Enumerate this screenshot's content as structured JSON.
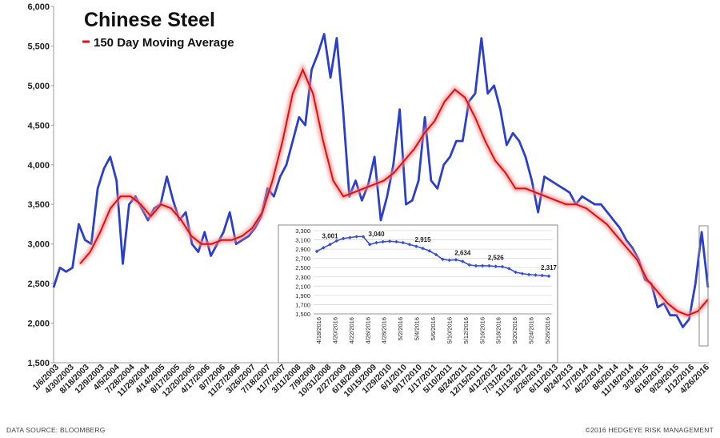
{
  "chart_data": [
    {
      "type": "line",
      "title": "Chinese Steel",
      "ylim": [
        1500,
        6000
      ],
      "yticks": [
        "1,500",
        "2,000",
        "2,500",
        "3,000",
        "3,500",
        "4,000",
        "4,500",
        "5,000",
        "5,500",
        "6,000"
      ],
      "ytick_values": [
        1500,
        2000,
        2500,
        3000,
        3500,
        4000,
        4500,
        5000,
        5500,
        6000
      ],
      "xticks": [
        "1/6/2003",
        "4/30/2003",
        "8/18/2003",
        "12/9/2003",
        "4/5/2004",
        "7/28/2004",
        "11/29/2004",
        "4/14/2005",
        "8/17/2005",
        "12/20/2005",
        "4/17/2006",
        "8/7/2006",
        "11/27/2006",
        "3/26/2007",
        "7/18/2007",
        "11/7/2007",
        "3/11/2008",
        "7/9/2008",
        "10/31/2008",
        "2/27/2009",
        "6/18/2009",
        "10/15/2009",
        "1/29/2010",
        "6/1/2010",
        "9/17/2010",
        "1/17/2011",
        "5/10/2011",
        "8/24/2011",
        "12/15/2011",
        "4/12/2012",
        "7/31/2012",
        "11/13/2012",
        "2/26/2013",
        "6/11/2013",
        "9/24/2013",
        "1/7/2014",
        "4/22/2014",
        "8/5/2014",
        "11/18/2014",
        "3/3/2015",
        "6/16/2015",
        "9/29/2015",
        "1/12/2016",
        "4/26/2016"
      ],
      "grid": false,
      "series": [
        {
          "name": "",
          "color": "#2b3fc8",
          "values": [
            2450,
            2700,
            2650,
            2700,
            3250,
            3050,
            3000,
            3700,
            3950,
            4100,
            3800,
            2750,
            3500,
            3600,
            3450,
            3300,
            3450,
            3500,
            3850,
            3550,
            3300,
            3400,
            3000,
            2900,
            3150,
            2850,
            3000,
            3150,
            3400,
            3000,
            3050,
            3100,
            3200,
            3350,
            3700,
            3600,
            3850,
            4000,
            4300,
            4600,
            4500,
            5200,
            5400,
            5650,
            5100,
            5600,
            4700,
            3600,
            3800,
            3550,
            3750,
            4100,
            3300,
            3600,
            4000,
            4700,
            3500,
            3550,
            3800,
            4600,
            3800,
            3700,
            4000,
            4100,
            4300,
            4300,
            4800,
            4900,
            5600,
            4900,
            5000,
            4700,
            4250,
            4400,
            4300,
            4100,
            3800,
            3400,
            3850,
            3800,
            3750,
            3700,
            3650,
            3500,
            3600,
            3550,
            3500,
            3500,
            3400,
            3300,
            3200,
            3050,
            2950,
            2800,
            2550,
            2500,
            2200,
            2250,
            2100,
            2100,
            1950,
            2050,
            2500,
            3150,
            2450
          ]
        },
        {
          "name": "150 Day Moving Average",
          "color": "#e01010",
          "values": [
            2750,
            2900,
            3150,
            3450,
            3600,
            3600,
            3500,
            3350,
            3500,
            3450,
            3300,
            3100,
            3000,
            3000,
            3050,
            3050,
            3100,
            3200,
            3400,
            3800,
            4300,
            4900,
            5200,
            4900,
            4300,
            3800,
            3600,
            3650,
            3700,
            3750,
            3800,
            3900,
            4050,
            4200,
            4400,
            4550,
            4800,
            4950,
            4850,
            4600,
            4300,
            4050,
            3900,
            3700,
            3700,
            3650,
            3600,
            3550,
            3500,
            3500,
            3450,
            3350,
            3250,
            3100,
            2950,
            2800,
            2550,
            2400,
            2250,
            2150,
            2100,
            2150,
            2300
          ]
        }
      ]
    },
    {
      "type": "line",
      "title": "",
      "ylim": [
        1500,
        3300
      ],
      "yticks": [
        "1,500",
        "1,700",
        "1,900",
        "2,100",
        "2,300",
        "2,500",
        "2,700",
        "2,900",
        "3,100",
        "3,300"
      ],
      "ytick_values": [
        1500,
        1700,
        1900,
        2100,
        2300,
        2500,
        2700,
        2900,
        3100,
        3300
      ],
      "xticks": [
        "4/18/2016",
        "4/20/2016",
        "4/22/2016",
        "4/26/2016",
        "4/28/2016",
        "5/2/2016",
        "5/4/2016",
        "5/6/2016",
        "5/10/2016",
        "5/12/2016",
        "5/16/2016",
        "5/18/2016",
        "5/20/2016",
        "5/24/2016",
        "5/26/2016"
      ],
      "grid": true,
      "series": [
        {
          "name": "",
          "color": "#3a4fd0",
          "values": [
            2850,
            2930,
            3001,
            3080,
            3130,
            3150,
            3170,
            3170,
            3000,
            3040,
            3060,
            3070,
            3060,
            3040,
            3000,
            2960,
            2915,
            2860,
            2780,
            2680,
            2660,
            2670,
            2634,
            2560,
            2540,
            2540,
            2540,
            2526,
            2520,
            2480,
            2400,
            2370,
            2350,
            2340,
            2330,
            2317
          ]
        }
      ],
      "data_labels": [
        {
          "index": 2,
          "text": "3,001"
        },
        {
          "index": 9,
          "text": "3,040"
        },
        {
          "index": 16,
          "text": "2,915"
        },
        {
          "index": 22,
          "text": "2,634"
        },
        {
          "index": 27,
          "text": "2,526"
        },
        {
          "index": 35,
          "text": "2,317"
        }
      ]
    }
  ],
  "footer": {
    "source": "DATA SOURCE:  BLOOMBERG",
    "copyright": "©2016 HEDGEYE  RISK MANAGEMENT"
  }
}
